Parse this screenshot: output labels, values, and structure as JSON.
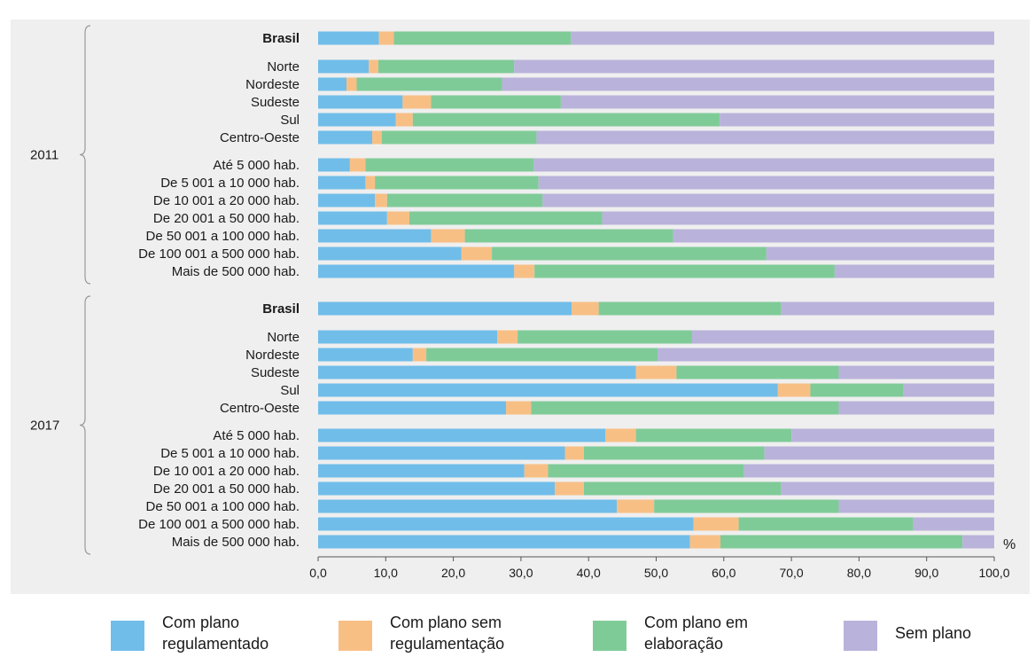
{
  "chart_data": {
    "type": "bar",
    "orientation": "horizontal",
    "stacked": true,
    "unit": "%",
    "xlim": [
      0,
      100
    ],
    "x_ticks": [
      "0,0",
      "10,0",
      "20,0",
      "30,0",
      "40,0",
      "50,0",
      "60,0",
      "70,0",
      "80,0",
      "90,0",
      "100,0"
    ],
    "legend_position": "bottom",
    "grid": false,
    "colors": [
      "#70bde9",
      "#f8bf85",
      "#7fcb98",
      "#b9b3db"
    ],
    "series": [
      {
        "name": "Com plano regulamentado"
      },
      {
        "name": "Com plano sem regulamentação"
      },
      {
        "name": "Com plano em elaboração"
      },
      {
        "name": "Sem plano"
      }
    ],
    "groups": [
      {
        "label": "2011",
        "rows": [
          {
            "label": "Brasil",
            "bold": true,
            "values": [
              9.0,
              2.2,
              26.2,
              62.6
            ]
          },
          {
            "label": "Norte",
            "values": [
              7.5,
              1.4,
              20.1,
              71.0
            ]
          },
          {
            "label": "Nordeste",
            "values": [
              4.2,
              1.5,
              21.5,
              72.8
            ]
          },
          {
            "label": "Sudeste",
            "values": [
              12.5,
              4.2,
              19.2,
              64.1
            ]
          },
          {
            "label": "Sul",
            "values": [
              11.5,
              2.5,
              45.4,
              40.6
            ]
          },
          {
            "label": "Centro-Oeste",
            "values": [
              8.0,
              1.4,
              22.9,
              67.7
            ]
          },
          {
            "label": "Até 5 000 hab.",
            "values": [
              4.7,
              2.3,
              24.9,
              68.1
            ]
          },
          {
            "label": "De 5 001 a 10 000 hab.",
            "values": [
              7.0,
              1.4,
              24.2,
              67.4
            ]
          },
          {
            "label": "De 10 001 a 20 000 hab.",
            "values": [
              8.4,
              1.8,
              23.0,
              66.8
            ]
          },
          {
            "label": "De 20 001 a 50 000 hab.",
            "values": [
              10.2,
              3.3,
              28.5,
              58.0
            ]
          },
          {
            "label": "De 50 001 a 100 000 hab.",
            "values": [
              16.7,
              5.0,
              30.8,
              47.5
            ]
          },
          {
            "label": "De 100 001 a 500 000 hab.",
            "values": [
              21.2,
              4.5,
              40.6,
              33.7
            ]
          },
          {
            "label": "Mais de 500 000 hab.",
            "values": [
              29.0,
              3.0,
              44.4,
              23.6
            ]
          }
        ]
      },
      {
        "label": "2017",
        "rows": [
          {
            "label": "Brasil",
            "bold": true,
            "values": [
              37.5,
              4.0,
              27.0,
              31.5
            ]
          },
          {
            "label": "Norte",
            "values": [
              26.5,
              3.0,
              25.8,
              44.7
            ]
          },
          {
            "label": "Nordeste",
            "values": [
              14.0,
              2.0,
              34.2,
              49.8
            ]
          },
          {
            "label": "Sudeste",
            "values": [
              47.0,
              6.0,
              24.0,
              23.0
            ]
          },
          {
            "label": "Sul",
            "values": [
              68.0,
              4.8,
              13.7,
              13.5
            ]
          },
          {
            "label": "Centro-Oeste",
            "values": [
              27.8,
              3.7,
              45.5,
              23.0
            ]
          },
          {
            "label": "Até 5 000 hab.",
            "values": [
              42.5,
              4.5,
              23.0,
              30.0
            ]
          },
          {
            "label": "De 5 001 a 10 000 hab.",
            "values": [
              36.5,
              2.8,
              26.7,
              34.0
            ]
          },
          {
            "label": "De 10 001 a 20 000 hab.",
            "values": [
              30.5,
              3.5,
              29.0,
              37.0
            ]
          },
          {
            "label": "De 20 001 a 50 000 hab.",
            "values": [
              35.0,
              4.3,
              29.2,
              31.5
            ]
          },
          {
            "label": "De 50 001 a 100 000 hab.",
            "values": [
              44.2,
              5.5,
              27.3,
              23.0
            ]
          },
          {
            "label": "De 100 001 a 500 000 hab.",
            "values": [
              55.5,
              6.7,
              25.8,
              12.0
            ]
          },
          {
            "label": "Mais de 500 000 hab.",
            "values": [
              55.0,
              4.5,
              35.8,
              4.7
            ]
          }
        ]
      }
    ]
  }
}
